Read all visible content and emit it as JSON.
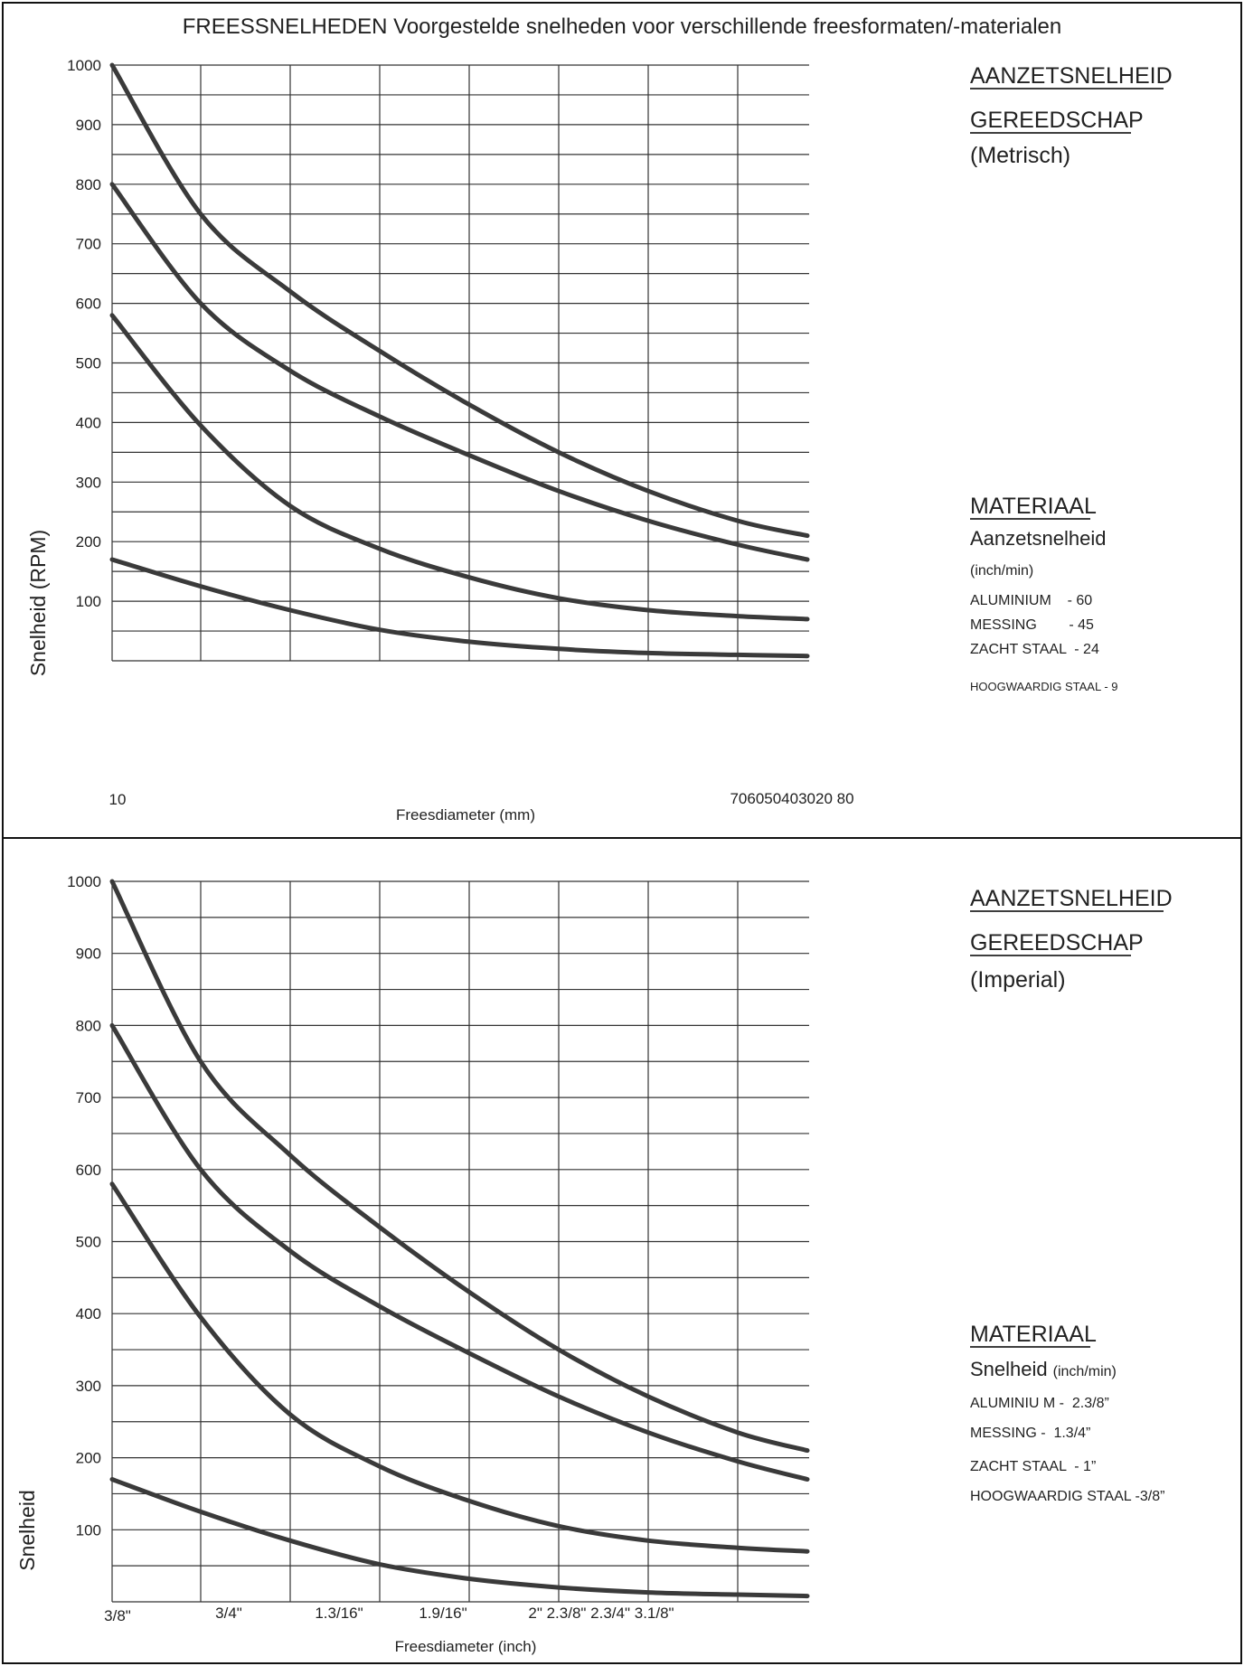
{
  "title": "FREESSNELHEDEN Voorgestelde snelheden voor verschillende freesformaten/-materialen",
  "chart_data": [
    {
      "type": "line",
      "ylabel": "Snelheid (RPM)",
      "xlabel": "Freesdiameter (mm)",
      "ylim": [
        0,
        1000
      ],
      "y_ticks": [
        "1000",
        "900",
        "800",
        "700",
        "600",
        "500",
        "400",
        "300",
        "200",
        "100"
      ],
      "x_tick_labels": [
        "10",
        "706050403020 80"
      ],
      "grid": true,
      "side_head_1": "AANZETSNELHEID",
      "side_head_2": "GEREEDSCHAP",
      "side_unit": "(Metrisch)",
      "legend_title": "MATERIAAL",
      "legend_line_1": "Aanzetsnelheid",
      "legend_line_2": "(inch/min)",
      "legend_items": [
        "ALUMINIUM    - 60",
        "MESSING        - 45",
        "ZACHT STAAL  - 24",
        "HOOGWAARDIG STAAL - 9"
      ],
      "series": [
        {
          "values": [
            1000,
            750,
            620,
            520,
            430,
            350,
            285,
            235,
            210
          ]
        },
        {
          "values": [
            800,
            600,
            487,
            410,
            345,
            285,
            235,
            195,
            170
          ]
        },
        {
          "values": [
            580,
            395,
            260,
            188,
            140,
            105,
            85,
            75,
            70
          ]
        },
        {
          "values": [
            170,
            125,
            85,
            52,
            32,
            20,
            13,
            10,
            8
          ]
        }
      ]
    },
    {
      "type": "line",
      "ylabel": "Snelheid",
      "xlabel": "Freesdiameter (inch)",
      "ylim": [
        0,
        1000
      ],
      "y_ticks": [
        "1000",
        "900",
        "800",
        "700",
        "600",
        "500",
        "400",
        "300",
        "200",
        "100"
      ],
      "x_tick_labels": [
        "3/8\"",
        "3/4\"",
        "1.3/16\"",
        "1.9/16\"",
        "2\" 2.3/8\" 2.3/4\" 3.1/8\""
      ],
      "grid": true,
      "side_head_1": "AANZETSNELHEID",
      "side_head_2": "GEREEDSCHAP",
      "side_unit": "(Imperial)",
      "legend_title": "MATERIAAL",
      "legend_line_1": "Snelheid",
      "legend_line_2": "(inch/min)",
      "legend_items": [
        "ALUMINIU M -  2.3/8”",
        "MESSING -  1.3/4”",
        "ZACHT STAAL  - 1”",
        "HOOGWAARDIG STAAL -3/8”"
      ],
      "series": [
        {
          "values": [
            1000,
            750,
            620,
            520,
            430,
            350,
            285,
            235,
            210
          ]
        },
        {
          "values": [
            800,
            600,
            487,
            410,
            345,
            285,
            235,
            195,
            170
          ]
        },
        {
          "values": [
            580,
            395,
            260,
            188,
            140,
            105,
            85,
            75,
            70
          ]
        },
        {
          "values": [
            170,
            125,
            85,
            52,
            32,
            20,
            13,
            10,
            8
          ]
        }
      ]
    }
  ]
}
